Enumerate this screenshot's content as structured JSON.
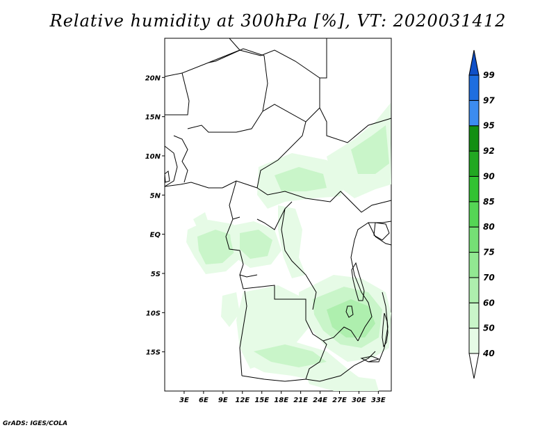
{
  "title": "Relative humidity at 300hPa [%], VT: 2020031412",
  "credit": "GrADS: IGES/COLA",
  "map": {
    "lon_range": [
      0,
      35
    ],
    "lat_range": [
      -20,
      25
    ],
    "x_ticks": [
      "3E",
      "6E",
      "9E",
      "12E",
      "15E",
      "18E",
      "21E",
      "24E",
      "27E",
      "30E",
      "33E"
    ],
    "y_ticks": [
      "20N",
      "15N",
      "10N",
      "5N",
      "EQ",
      "5S",
      "10S",
      "15S"
    ],
    "land_color": "#ffffff",
    "border_color": "#000000"
  },
  "colorbar": {
    "labels": [
      "40",
      "50",
      "60",
      "70",
      "75",
      "80",
      "85",
      "90",
      "92",
      "95",
      "97",
      "99"
    ],
    "colors": [
      "#ffffff",
      "#e6fbe6",
      "#c9f5c9",
      "#aeefae",
      "#92e892",
      "#75e075",
      "#55d655",
      "#32c232",
      "#22a822",
      "#138f13",
      "#3c8cf0",
      "#1e6ee0",
      "#0f50c8"
    ]
  },
  "humidity_regions": [
    {
      "level": 1,
      "points": [
        [
          270,
          330
        ],
        [
          300,
          316
        ],
        [
          335,
          322
        ],
        [
          355,
          345
        ],
        [
          345,
          372
        ],
        [
          325,
          390
        ],
        [
          296,
          394
        ],
        [
          280,
          370
        ],
        [
          268,
          348
        ]
      ]
    },
    {
      "level": 2,
      "points": [
        [
          284,
          340
        ],
        [
          310,
          330
        ],
        [
          335,
          338
        ],
        [
          340,
          360
        ],
        [
          320,
          378
        ],
        [
          296,
          380
        ],
        [
          286,
          360
        ]
      ]
    },
    {
      "level": 1,
      "points": [
        [
          330,
          325
        ],
        [
          365,
          318
        ],
        [
          395,
          330
        ],
        [
          405,
          360
        ],
        [
          390,
          380
        ],
        [
          360,
          385
        ],
        [
          338,
          370
        ],
        [
          332,
          345
        ]
      ]
    },
    {
      "level": 2,
      "points": [
        [
          345,
          335
        ],
        [
          372,
          330
        ],
        [
          392,
          345
        ],
        [
          385,
          368
        ],
        [
          360,
          372
        ],
        [
          345,
          358
        ]
      ]
    },
    {
      "level": 1,
      "points": [
        [
          372,
          240
        ],
        [
          420,
          220
        ],
        [
          470,
          230
        ],
        [
          500,
          255
        ],
        [
          490,
          282
        ],
        [
          450,
          285
        ],
        [
          410,
          290
        ],
        [
          385,
          300
        ],
        [
          370,
          280
        ]
      ]
    },
    {
      "level": 2,
      "points": [
        [
          395,
          252
        ],
        [
          430,
          240
        ],
        [
          465,
          250
        ],
        [
          470,
          270
        ],
        [
          440,
          275
        ],
        [
          405,
          275
        ]
      ]
    },
    {
      "level": 1,
      "points": [
        [
          470,
          225
        ],
        [
          510,
          200
        ],
        [
          540,
          175
        ],
        [
          562,
          148
        ],
        [
          563,
          265
        ],
        [
          540,
          272
        ],
        [
          510,
          285
        ],
        [
          490,
          270
        ],
        [
          475,
          245
        ]
      ]
    },
    {
      "level": 2,
      "points": [
        [
          505,
          215
        ],
        [
          535,
          195
        ],
        [
          555,
          180
        ],
        [
          560,
          235
        ],
        [
          540,
          250
        ],
        [
          515,
          250
        ]
      ]
    },
    {
      "level": 1,
      "points": [
        [
          400,
          295
        ],
        [
          425,
          300
        ],
        [
          435,
          330
        ],
        [
          430,
          370
        ],
        [
          440,
          395
        ],
        [
          420,
          400
        ],
        [
          408,
          370
        ],
        [
          400,
          330
        ]
      ]
    },
    {
      "level": 1,
      "points": [
        [
          430,
          420
        ],
        [
          480,
          395
        ],
        [
          520,
          400
        ],
        [
          555,
          420
        ],
        [
          563,
          450
        ],
        [
          560,
          500
        ],
        [
          535,
          515
        ],
        [
          500,
          520
        ],
        [
          470,
          500
        ],
        [
          445,
          470
        ],
        [
          430,
          445
        ]
      ]
    },
    {
      "level": 2,
      "points": [
        [
          450,
          430
        ],
        [
          495,
          412
        ],
        [
          530,
          420
        ],
        [
          550,
          445
        ],
        [
          545,
          485
        ],
        [
          520,
          500
        ],
        [
          490,
          495
        ],
        [
          465,
          475
        ],
        [
          452,
          452
        ]
      ]
    },
    {
      "level": 3,
      "points": [
        [
          470,
          445
        ],
        [
          505,
          430
        ],
        [
          530,
          440
        ],
        [
          540,
          465
        ],
        [
          525,
          485
        ],
        [
          498,
          485
        ],
        [
          478,
          470
        ]
      ]
    },
    {
      "level": 1,
      "points": [
        [
          350,
          420
        ],
        [
          400,
          410
        ],
        [
          440,
          430
        ],
        [
          445,
          470
        ],
        [
          420,
          500
        ],
        [
          390,
          520
        ],
        [
          360,
          530
        ],
        [
          345,
          500
        ],
        [
          340,
          460
        ]
      ]
    },
    {
      "level": 1,
      "points": [
        [
          355,
          500
        ],
        [
          420,
          490
        ],
        [
          470,
          505
        ],
        [
          500,
          530
        ],
        [
          520,
          545
        ],
        [
          470,
          550
        ],
        [
          420,
          540
        ],
        [
          380,
          535
        ],
        [
          360,
          525
        ]
      ]
    },
    {
      "level": 2,
      "points": [
        [
          365,
          505
        ],
        [
          410,
          495
        ],
        [
          450,
          505
        ],
        [
          470,
          520
        ],
        [
          430,
          528
        ],
        [
          390,
          520
        ]
      ]
    },
    {
      "level": 1,
      "points": [
        [
          440,
          538
        ],
        [
          500,
          540
        ],
        [
          540,
          545
        ],
        [
          545,
          562
        ],
        [
          480,
          562
        ],
        [
          445,
          552
        ]
      ]
    },
    {
      "level": 1,
      "points": [
        [
          320,
          425
        ],
        [
          340,
          420
        ],
        [
          345,
          450
        ],
        [
          330,
          470
        ],
        [
          318,
          455
        ]
      ]
    },
    {
      "level": 1,
      "points": [
        [
          278,
          315
        ],
        [
          295,
          305
        ],
        [
          300,
          320
        ],
        [
          285,
          330
        ]
      ]
    }
  ],
  "borders": [
    [
      [
        237,
        55
      ],
      [
        300,
        55
      ],
      [
        330,
        55
      ],
      [
        345,
        72
      ],
      [
        375,
        80
      ],
      [
        395,
        72
      ],
      [
        425,
        88
      ],
      [
        460,
        112
      ],
      [
        470,
        112
      ],
      [
        470,
        55
      ]
    ],
    [
      [
        237,
        165
      ],
      [
        270,
        165
      ],
      [
        272,
        145
      ],
      [
        262,
        105
      ],
      [
        300,
        90
      ],
      [
        345,
        72
      ]
    ],
    [
      [
        262,
        105
      ],
      [
        237,
        110
      ]
    ],
    [
      [
        300,
        90
      ],
      [
        310,
        88
      ],
      [
        350,
        70
      ],
      [
        380,
        80
      ],
      [
        385,
        120
      ],
      [
        378,
        160
      ],
      [
        362,
        185
      ],
      [
        340,
        190
      ],
      [
        300,
        190
      ],
      [
        290,
        180
      ],
      [
        270,
        185
      ]
    ],
    [
      [
        378,
        160
      ],
      [
        395,
        150
      ],
      [
        440,
        175
      ],
      [
        460,
        155
      ],
      [
        460,
        112
      ]
    ],
    [
      [
        460,
        155
      ],
      [
        470,
        175
      ],
      [
        470,
        195
      ],
      [
        500,
        205
      ],
      [
        530,
        180
      ],
      [
        563,
        170
      ]
    ],
    [
      [
        440,
        175
      ],
      [
        435,
        195
      ],
      [
        400,
        230
      ],
      [
        375,
        245
      ],
      [
        370,
        270
      ]
    ],
    [
      [
        370,
        270
      ],
      [
        385,
        280
      ],
      [
        410,
        275
      ],
      [
        440,
        285
      ],
      [
        475,
        290
      ],
      [
        490,
        275
      ],
      [
        520,
        305
      ],
      [
        535,
        295
      ],
      [
        563,
        288
      ]
    ],
    [
      [
        320,
        270
      ],
      [
        340,
        260
      ],
      [
        355,
        265
      ],
      [
        370,
        270
      ]
    ],
    [
      [
        340,
        260
      ],
      [
        330,
        295
      ],
      [
        335,
        315
      ],
      [
        345,
        312
      ]
    ],
    [
      [
        335,
        315
      ],
      [
        325,
        340
      ],
      [
        330,
        358
      ],
      [
        345,
        360
      ],
      [
        350,
        380
      ],
      [
        345,
        395
      ],
      [
        355,
        398
      ],
      [
        370,
        395
      ]
    ],
    [
      [
        370,
        315
      ],
      [
        380,
        320
      ],
      [
        395,
        330
      ],
      [
        410,
        300
      ],
      [
        420,
        290
      ]
    ],
    [
      [
        410,
        300
      ],
      [
        405,
        330
      ],
      [
        410,
        360
      ],
      [
        420,
        375
      ],
      [
        440,
        395
      ],
      [
        455,
        420
      ],
      [
        450,
        445
      ]
    ],
    [
      [
        345,
        395
      ],
      [
        350,
        415
      ],
      [
        395,
        410
      ],
      [
        395,
        430
      ],
      [
        440,
        430
      ],
      [
        440,
        460
      ],
      [
        450,
        480
      ],
      [
        465,
        490
      ],
      [
        480,
        485
      ],
      [
        495,
        470
      ],
      [
        505,
        475
      ],
      [
        515,
        490
      ]
    ],
    [
      [
        465,
        490
      ],
      [
        470,
        495
      ],
      [
        460,
        520
      ],
      [
        445,
        530
      ],
      [
        440,
        545
      ],
      [
        410,
        548
      ],
      [
        380,
        545
      ],
      [
        348,
        540
      ]
    ],
    [
      [
        348,
        540
      ],
      [
        345,
        500
      ],
      [
        350,
        470
      ],
      [
        355,
        440
      ],
      [
        352,
        418
      ]
    ],
    [
      [
        440,
        545
      ],
      [
        460,
        548
      ],
      [
        490,
        540
      ],
      [
        510,
        525
      ],
      [
        530,
        515
      ],
      [
        540,
        505
      ]
    ],
    [
      [
        515,
        490
      ],
      [
        525,
        470
      ],
      [
        535,
        455
      ],
      [
        530,
        435
      ],
      [
        520,
        420
      ]
    ],
    [
      [
        520,
        420
      ],
      [
        510,
        395
      ],
      [
        505,
        370
      ],
      [
        510,
        345
      ],
      [
        515,
        330
      ],
      [
        530,
        320
      ],
      [
        550,
        320
      ],
      [
        563,
        318
      ]
    ],
    [
      [
        530,
        320
      ],
      [
        540,
        340
      ],
      [
        555,
        350
      ],
      [
        563,
        352
      ]
    ],
    [
      [
        237,
        268
      ],
      [
        260,
        265
      ],
      [
        275,
        262
      ],
      [
        300,
        270
      ],
      [
        320,
        270
      ]
    ],
    [
      [
        237,
        210
      ],
      [
        250,
        220
      ],
      [
        255,
        240
      ],
      [
        250,
        260
      ],
      [
        237,
        268
      ]
    ],
    [
      [
        250,
        195
      ],
      [
        262,
        200
      ],
      [
        270,
        215
      ],
      [
        262,
        232
      ],
      [
        270,
        245
      ],
      [
        265,
        262
      ]
    ],
    [
      [
        550,
        420
      ],
      [
        555,
        440
      ],
      [
        558,
        470
      ],
      [
        553,
        500
      ],
      [
        545,
        520
      ],
      [
        530,
        520
      ]
    ]
  ]
}
